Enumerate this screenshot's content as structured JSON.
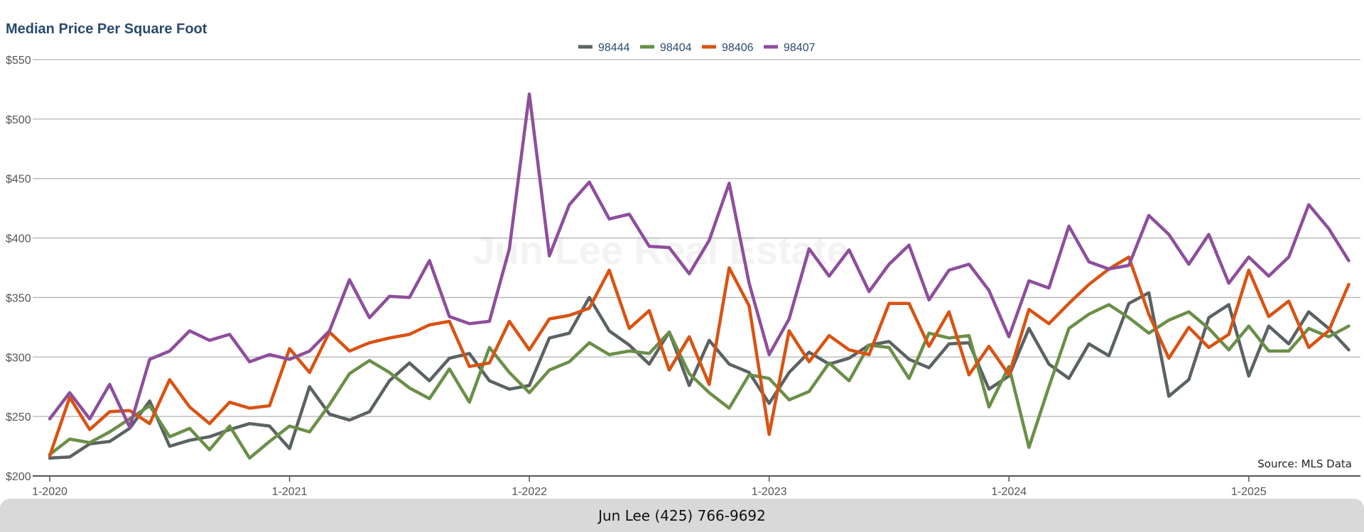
{
  "footer": {
    "contact": "Jun Lee (425) 766-9692"
  },
  "watermark": "Jun Lee Real Estate",
  "chart_data": {
    "type": "line",
    "title": "Median Price Per Square Foot",
    "source_note": "Source: MLS Data",
    "legend_position": "top-center",
    "grid": true,
    "xlabel": "",
    "ylabel": "",
    "ylim": [
      200,
      550
    ],
    "yticks": [
      200,
      250,
      300,
      350,
      400,
      450,
      500,
      550
    ],
    "ytick_labels": [
      "$200",
      "$250",
      "$300",
      "$350",
      "$400",
      "$450",
      "$500",
      "$550"
    ],
    "x_start": "1-2020",
    "xtick_labels": [
      "1-2020",
      "1-2021",
      "1-2022",
      "1-2023",
      "1-2024",
      "1-2025"
    ],
    "xtick_positions": [
      0,
      12,
      24,
      36,
      48,
      60
    ],
    "series": [
      {
        "name": "98444",
        "color": "#5b6263",
        "values": [
          215,
          216,
          227,
          229,
          240,
          263,
          225,
          230,
          233,
          239,
          244,
          242,
          223,
          275,
          252,
          247,
          254,
          280,
          295,
          280,
          299,
          303,
          280,
          273,
          276,
          316,
          320,
          350,
          322,
          310,
          294,
          321,
          276,
          314,
          294,
          287,
          261,
          287,
          304,
          294,
          299,
          310,
          313,
          298,
          291,
          311,
          312,
          273,
          284,
          324,
          294,
          282,
          311,
          301,
          345,
          354,
          267,
          281,
          333,
          344,
          284,
          326,
          311,
          338,
          324,
          306
        ]
      },
      {
        "name": "98404",
        "color": "#6a8f48",
        "values": [
          218,
          231,
          228,
          237,
          248,
          259,
          233,
          240,
          222,
          242,
          215,
          229,
          242,
          237,
          260,
          286,
          297,
          287,
          274,
          265,
          290,
          262,
          308,
          287,
          270,
          289,
          296,
          312,
          302,
          305,
          303,
          321,
          286,
          270,
          257,
          285,
          282,
          264,
          271,
          295,
          280,
          310,
          308,
          282,
          320,
          316,
          318,
          258,
          292,
          224,
          275,
          324,
          336,
          344,
          333,
          320,
          331,
          338,
          324,
          306,
          326,
          305,
          305,
          324,
          317,
          326
        ]
      },
      {
        "name": "98406",
        "color": "#d85312",
        "values": [
          217,
          266,
          239,
          254,
          255,
          244,
          281,
          258,
          244,
          262,
          257,
          259,
          307,
          287,
          321,
          305,
          312,
          316,
          319,
          327,
          330,
          292,
          295,
          330,
          306,
          332,
          335,
          341,
          373,
          324,
          339,
          289,
          317,
          277,
          375,
          343,
          235,
          322,
          296,
          318,
          306,
          302,
          345,
          345,
          309,
          338,
          285,
          309,
          285,
          340,
          328,
          345,
          361,
          374,
          384,
          336,
          299,
          325,
          308,
          319,
          373,
          334,
          347,
          308,
          322,
          361
        ]
      },
      {
        "name": "98407",
        "color": "#8e4e9c",
        "values": [
          248,
          270,
          248,
          277,
          241,
          298,
          305,
          322,
          314,
          319,
          296,
          302,
          298,
          305,
          322,
          365,
          333,
          351,
          350,
          381,
          334,
          328,
          330,
          391,
          521,
          385,
          428,
          447,
          416,
          420,
          393,
          392,
          370,
          398,
          446,
          362,
          302,
          332,
          391,
          368,
          390,
          355,
          378,
          394,
          348,
          373,
          378,
          356,
          317,
          364,
          358,
          410,
          380,
          374,
          377,
          419,
          403,
          378,
          403,
          362,
          384,
          368,
          384,
          428,
          408,
          381
        ]
      }
    ]
  }
}
